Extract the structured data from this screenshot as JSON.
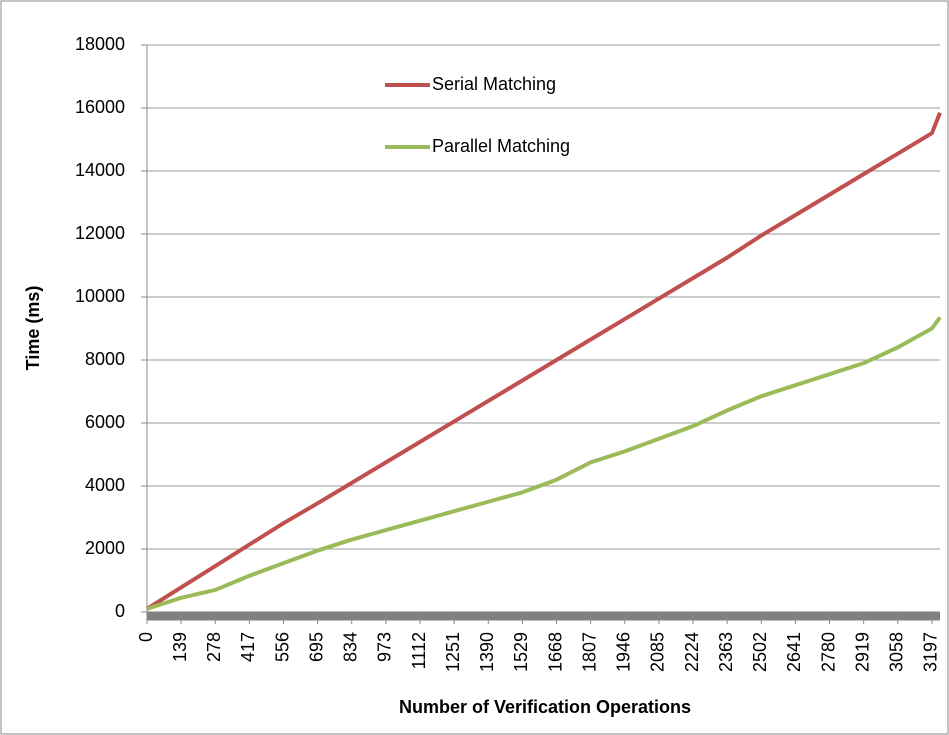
{
  "chart_data": {
    "type": "line",
    "xlabel": "Number of Verification Operations",
    "ylabel": "Time (ms)",
    "x": [
      0,
      139,
      278,
      417,
      556,
      695,
      834,
      973,
      1112,
      1251,
      1390,
      1529,
      1668,
      1807,
      1946,
      2085,
      2224,
      2363,
      2502,
      2641,
      2780,
      2919,
      3058,
      3197,
      3230
    ],
    "series": [
      {
        "name": "Serial Matching",
        "color": "#c0504d",
        "values": [
          100,
          780,
          1460,
          2140,
          2820,
          3450,
          4100,
          4750,
          5400,
          6050,
          6700,
          7350,
          8000,
          8650,
          9300,
          9950,
          10600,
          11250,
          11950,
          12600,
          13250,
          13900,
          14550,
          15200,
          15850
        ]
      },
      {
        "name": "Parallel Matching",
        "color": "#9bbb59",
        "values": [
          100,
          450,
          700,
          1150,
          1550,
          1950,
          2300,
          2600,
          2900,
          3200,
          3500,
          3800,
          4200,
          4750,
          5100,
          5500,
          5900,
          6400,
          6850,
          7200,
          7550,
          7900,
          8400,
          9000,
          9350
        ]
      }
    ],
    "xlim": [
      0,
      3230
    ],
    "xticks": [
      0,
      139,
      278,
      417,
      556,
      695,
      834,
      973,
      1112,
      1251,
      1390,
      1529,
      1668,
      1807,
      1946,
      2085,
      2224,
      2363,
      2502,
      2641,
      2780,
      2919,
      3058,
      3197
    ],
    "ylim": [
      0,
      18000
    ],
    "yticks": [
      0,
      2000,
      4000,
      6000,
      8000,
      10000,
      12000,
      14000,
      16000,
      18000
    ],
    "grid": true
  }
}
